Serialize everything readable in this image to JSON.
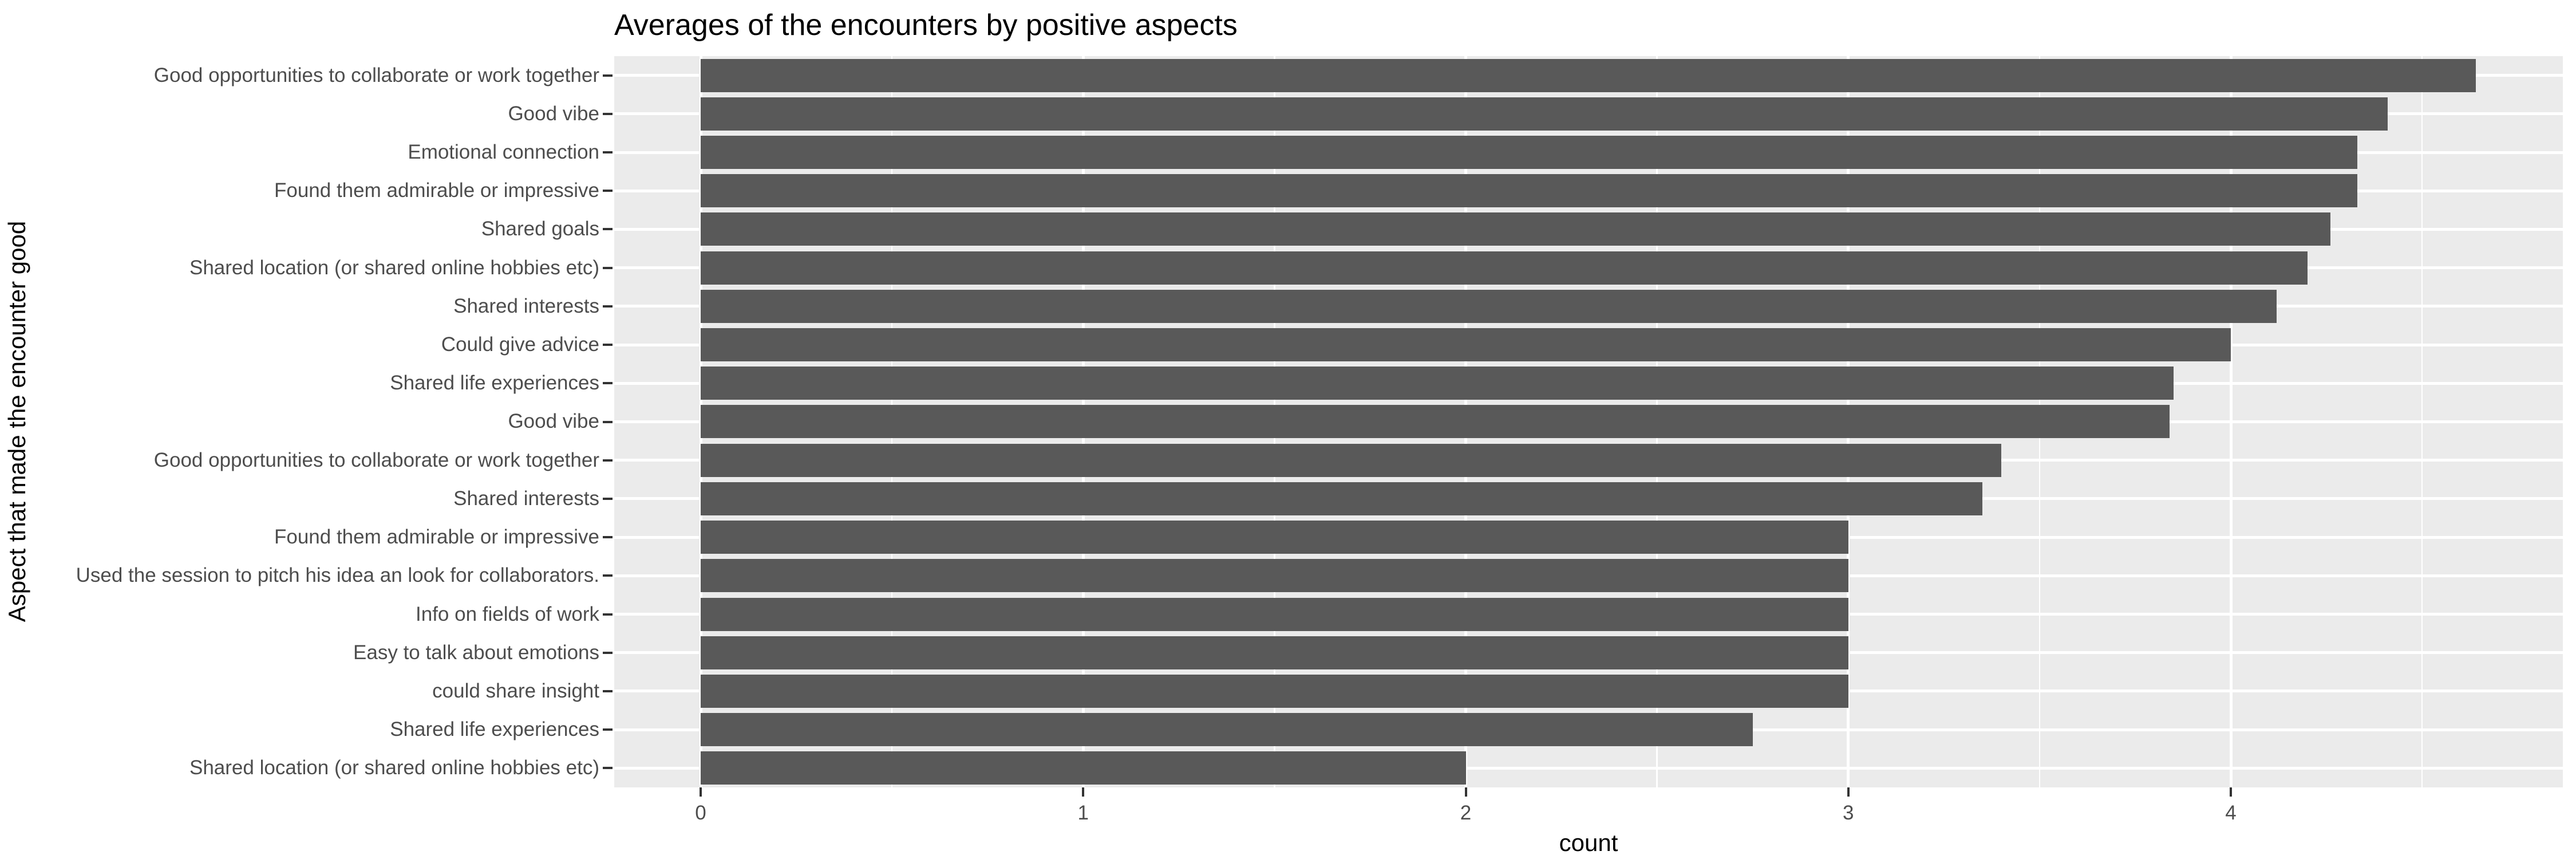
{
  "title": "Averages of the encounters by positive aspects",
  "chart_data": {
    "type": "bar",
    "orientation": "horizontal",
    "title": "Averages of the encounters by positive aspects",
    "xlabel": "count",
    "ylabel": "Aspect that made the encounter good",
    "categories": [
      "Good opportunities to collaborate or work together",
      "Good vibe",
      "Emotional connection",
      "Found them admirable or impressive",
      "Shared goals",
      "Shared location (or shared online hobbies etc)",
      "Shared interests",
      "Could give advice",
      "Shared life experiences",
      "Good vibe",
      "Good opportunities to collaborate or work together",
      "Shared interests",
      "Found them admirable or impressive",
      "Used the session to pitch his idea an look for collaborators.",
      "Info on fields of work",
      "Easy to talk about emotions",
      "could share insight",
      "Shared life experiences",
      "Shared location (or shared online hobbies etc)"
    ],
    "values": [
      4.64,
      4.41,
      4.33,
      4.33,
      4.26,
      4.2,
      4.12,
      4.0,
      3.85,
      3.84,
      3.4,
      3.35,
      3.0,
      3.0,
      3.0,
      3.0,
      3.0,
      2.75,
      2.0
    ],
    "x_ticks": [
      0,
      1,
      2,
      3,
      4
    ],
    "x_minor_ticks": [
      0.5,
      1.5,
      2.5,
      3.5,
      4.5
    ],
    "xlim": [
      -0.23,
      4.87
    ],
    "grid": true,
    "legend_position": "none",
    "colors": {
      "bar": "#595959",
      "panel_background": "#EBEBEB",
      "gridline": "#FFFFFF",
      "axis_text": "#4D4D4D",
      "tick_mark": "#333333",
      "title_text": "#000000"
    }
  }
}
